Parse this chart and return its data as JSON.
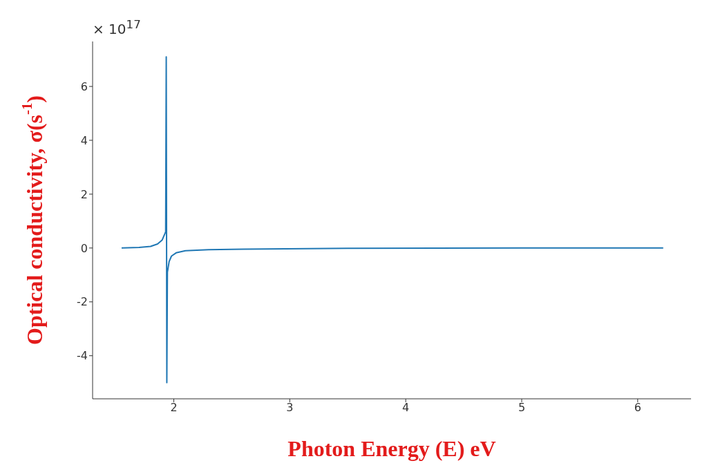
{
  "chart_data": {
    "type": "line",
    "xlabel": "Photon Energy (E) eV",
    "ylabel": "Optical conductivity, σ(s$^{-1}$)",
    "annotations": [
      "× 10$^{17}$"
    ],
    "x": [
      1.55,
      1.7,
      1.8,
      1.86,
      1.9,
      1.92,
      1.93,
      1.935,
      1.94,
      1.945,
      1.96,
      1.98,
      2.02,
      2.1,
      2.3,
      2.6,
      3.5,
      5,
      6.22
    ],
    "series": [
      {
        "color": "#1f77b4",
        "values": [
          0,
          0.02,
          0.06,
          0.15,
          0.3,
          0.5,
          0.6,
          7.1,
          -5.0,
          -0.9,
          -0.5,
          -0.3,
          -0.18,
          -0.1,
          -0.06,
          -0.04,
          -0.01,
          0,
          0
        ]
      }
    ],
    "xlim": [
      1.3,
      6.46
    ],
    "xticks": [
      2,
      3,
      4,
      5,
      6
    ],
    "ylim": [
      -5.6,
      7.67
    ],
    "yticks": [
      -4,
      -2,
      0,
      2,
      4,
      6
    ],
    "grid": false,
    "legend": false,
    "marker": "none",
    "line_style": "solid"
  }
}
